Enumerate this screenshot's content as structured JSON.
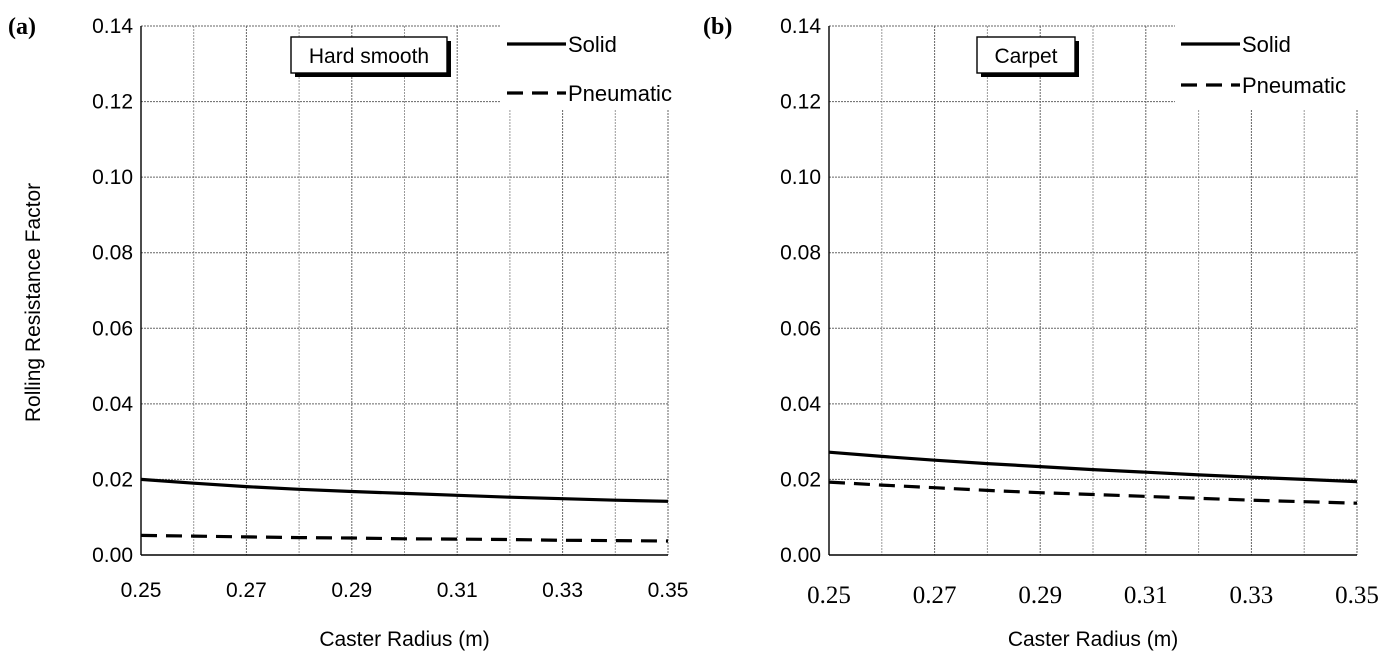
{
  "chart_data": [
    {
      "panel": "(a)",
      "type": "line",
      "annotation": "Hard smooth",
      "xlabel": "Caster Radius (m)",
      "ylabel": "Rolling Resistance Factor",
      "xlim": [
        0.25,
        0.35
      ],
      "ylim": [
        0.0,
        0.14
      ],
      "xticks": [
        "0.25",
        "0.27",
        "0.29",
        "0.31",
        "0.33",
        "0.35"
      ],
      "yticks": [
        "0.00",
        "0.02",
        "0.04",
        "0.06",
        "0.08",
        "0.10",
        "0.12",
        "0.14"
      ],
      "grid": true,
      "legend_position": "top-right",
      "x": [
        0.25,
        0.26,
        0.27,
        0.28,
        0.29,
        0.3,
        0.31,
        0.32,
        0.33,
        0.34,
        0.35
      ],
      "series": [
        {
          "name": "Solid",
          "style": "solid",
          "values": [
            0.02,
            0.019,
            0.0181,
            0.0174,
            0.0168,
            0.0163,
            0.0158,
            0.0153,
            0.0149,
            0.0145,
            0.0142
          ]
        },
        {
          "name": "Pneumatic",
          "style": "dashed",
          "values": [
            0.0052,
            0.005,
            0.0048,
            0.0046,
            0.0045,
            0.0043,
            0.0042,
            0.0041,
            0.0039,
            0.0038,
            0.0037
          ]
        }
      ]
    },
    {
      "panel": "(b)",
      "type": "line",
      "annotation": "Carpet",
      "xlabel": "Caster Radius (m)",
      "ylabel": "",
      "xlim": [
        0.25,
        0.35
      ],
      "ylim": [
        0.0,
        0.14
      ],
      "xticks": [
        "0.25",
        "0.27",
        "0.29",
        "0.31",
        "0.33",
        "0.35"
      ],
      "yticks": [
        "0.00",
        "0.02",
        "0.04",
        "0.06",
        "0.08",
        "0.10",
        "0.12",
        "0.14"
      ],
      "grid": true,
      "legend_position": "top-right",
      "x": [
        0.25,
        0.26,
        0.27,
        0.28,
        0.29,
        0.3,
        0.31,
        0.32,
        0.33,
        0.34,
        0.35
      ],
      "series": [
        {
          "name": "Solid",
          "style": "solid",
          "values": [
            0.0272,
            0.0261,
            0.0251,
            0.0242,
            0.0234,
            0.0226,
            0.0219,
            0.0212,
            0.0206,
            0.02,
            0.0194
          ]
        },
        {
          "name": "Pneumatic",
          "style": "dashed",
          "values": [
            0.0193,
            0.0185,
            0.0178,
            0.0171,
            0.0165,
            0.016,
            0.0155,
            0.015,
            0.0145,
            0.0141,
            0.0137
          ]
        }
      ]
    }
  ]
}
